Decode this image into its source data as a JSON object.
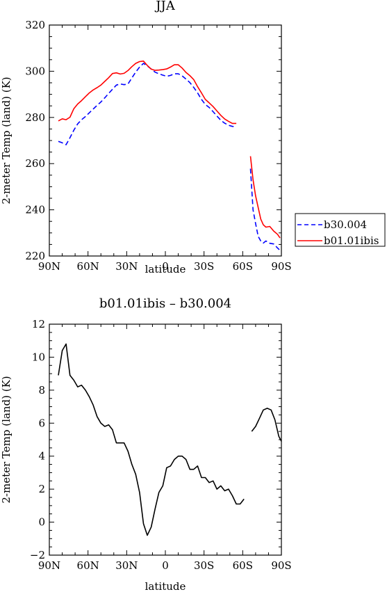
{
  "chart_data": [
    {
      "type": "line",
      "title": "JJA",
      "xlabel": "latitude",
      "ylabel": "2-meter Temp (land) (K)",
      "xlim": [
        90,
        -90
      ],
      "ylim": [
        220,
        320
      ],
      "x_tick_values": [
        90,
        60,
        30,
        0,
        -30,
        -60,
        -90
      ],
      "x_tick_labels": [
        "90N",
        "60N",
        "30N",
        "0",
        "30S",
        "60S",
        "90S"
      ],
      "y_tick_values": [
        220,
        240,
        260,
        280,
        300,
        320
      ],
      "y_tick_labels": [
        "220",
        "240",
        "260",
        "280",
        "300",
        "320"
      ],
      "grid": false,
      "legend_position": "right",
      "series": [
        {
          "name": "b30.004",
          "color": "#0000ff",
          "style": "dashed",
          "segments": [
            [
              [
                83,
                269.6
              ],
              [
                80,
                269.0
              ],
              [
                77,
                268.2
              ],
              [
                74,
                271.2
              ],
              [
                71,
                274.5
              ],
              [
                68,
                277.2
              ],
              [
                65,
                279.0
              ],
              [
                62,
                280.4
              ],
              [
                59,
                282.0
              ],
              [
                56,
                283.6
              ],
              [
                53,
                285.2
              ],
              [
                50,
                286.7
              ],
              [
                47,
                288.5
              ],
              [
                44,
                290.4
              ],
              [
                41,
                292.2
              ],
              [
                38,
                294.0
              ],
              [
                35,
                294.5
              ],
              [
                32,
                294.2
              ],
              [
                29,
                294.5
              ],
              [
                26,
                297.1
              ],
              [
                23,
                299.6
              ],
              [
                20,
                301.8
              ],
              [
                17,
                303.4
              ],
              [
                14,
                302.3
              ],
              [
                11,
                301.0
              ],
              [
                8,
                299.6
              ],
              [
                5,
                298.9
              ],
              [
                2,
                298.3
              ],
              [
                -1,
                297.8
              ],
              [
                -4,
                298.2
              ],
              [
                -7,
                298.9
              ],
              [
                -10,
                298.9
              ],
              [
                -13,
                298.0
              ],
              [
                -16,
                296.6
              ],
              [
                -19,
                295.1
              ],
              [
                -22,
                293.0
              ],
              [
                -25,
                290.6
              ],
              [
                -28,
                287.8
              ],
              [
                -31,
                285.6
              ],
              [
                -34,
                284.3
              ],
              [
                -37,
                282.5
              ],
              [
                -40,
                280.6
              ],
              [
                -43,
                278.8
              ],
              [
                -46,
                277.5
              ],
              [
                -49,
                276.6
              ],
              [
                -52,
                276.1
              ],
              [
                -55,
                276.0
              ]
            ],
            [
              [
                -66,
                257.8
              ],
              [
                -68,
                240.0
              ],
              [
                -70,
                234.0
              ],
              [
                -72,
                228.5
              ],
              [
                -74,
                226.5
              ],
              [
                -76,
                225.6
              ],
              [
                -78,
                226.5
              ],
              [
                -81,
                225.5
              ],
              [
                -84,
                225.2
              ],
              [
                -87,
                223.5
              ],
              [
                -89,
                222.4
              ]
            ]
          ]
        },
        {
          "name": "b01.01ibis",
          "color": "#ff0000",
          "style": "solid",
          "segments": [
            [
              [
                83,
                278.5
              ],
              [
                80,
                279.4
              ],
              [
                77,
                279.0
              ],
              [
                74,
                280.1
              ],
              [
                71,
                283.8
              ],
              [
                68,
                285.8
              ],
              [
                65,
                287.3
              ],
              [
                62,
                289.0
              ],
              [
                59,
                290.6
              ],
              [
                56,
                291.9
              ],
              [
                53,
                292.9
              ],
              [
                50,
                294.0
              ],
              [
                47,
                295.6
              ],
              [
                44,
                297.2
              ],
              [
                41,
                299.0
              ],
              [
                38,
                299.3
              ],
              [
                35,
                298.8
              ],
              [
                32,
                299.1
              ],
              [
                29,
                300.3
              ],
              [
                26,
                302.0
              ],
              [
                23,
                303.4
              ],
              [
                20,
                304.2
              ],
              [
                17,
                304.4
              ],
              [
                14,
                302.5
              ],
              [
                11,
                300.9
              ],
              [
                8,
                300.4
              ],
              [
                5,
                300.5
              ],
              [
                2,
                300.7
              ],
              [
                -1,
                301.0
              ],
              [
                -4,
                301.8
              ],
              [
                -7,
                302.8
              ],
              [
                -10,
                302.8
              ],
              [
                -13,
                301.4
              ],
              [
                -16,
                299.5
              ],
              [
                -19,
                298.1
              ],
              [
                -22,
                296.4
              ],
              [
                -25,
                293.3
              ],
              [
                -28,
                290.6
              ],
              [
                -31,
                287.8
              ],
              [
                -34,
                286.3
              ],
              [
                -37,
                284.7
              ],
              [
                -40,
                282.8
              ],
              [
                -43,
                280.9
              ],
              [
                -46,
                279.3
              ],
              [
                -49,
                278.3
              ],
              [
                -52,
                277.4
              ],
              [
                -55,
                277.4
              ]
            ],
            [
              [
                -66,
                263.2
              ],
              [
                -68,
                253.0
              ],
              [
                -70,
                246.0
              ],
              [
                -72,
                241.0
              ],
              [
                -74,
                236.0
              ],
              [
                -76,
                233.5
              ],
              [
                -78,
                232.5
              ],
              [
                -81,
                232.8
              ],
              [
                -84,
                230.8
              ],
              [
                -87,
                229.4
              ],
              [
                -89,
                227.8
              ]
            ]
          ]
        }
      ]
    },
    {
      "type": "line",
      "title": "b01.01ibis – b30.004",
      "xlabel": "latitude",
      "ylabel": "2-meter Temp (land) (K)",
      "xlim": [
        90,
        -90
      ],
      "ylim": [
        -2,
        12
      ],
      "x_tick_values": [
        90,
        60,
        30,
        0,
        -30,
        -60,
        -90
      ],
      "x_tick_labels": [
        "90N",
        "60N",
        "30N",
        "0",
        "30S",
        "60S",
        "90S"
      ],
      "y_tick_values": [
        -2,
        0,
        2,
        4,
        6,
        8,
        10,
        12
      ],
      "y_tick_labels": [
        "−2",
        "0",
        "2",
        "4",
        "6",
        "8",
        "10",
        "12"
      ],
      "grid": false,
      "series": [
        {
          "color": "#000000",
          "style": "solid",
          "segments": [
            [
              [
                83,
                8.9
              ],
              [
                80,
                10.4
              ],
              [
                77,
                10.8
              ],
              [
                74,
                8.9
              ],
              [
                71,
                8.6
              ],
              [
                68,
                8.2
              ],
              [
                65,
                8.3
              ],
              [
                62,
                8.0
              ],
              [
                59,
                7.6
              ],
              [
                56,
                7.1
              ],
              [
                53,
                6.4
              ],
              [
                50,
                6.0
              ],
              [
                47,
                5.8
              ],
              [
                44,
                5.9
              ],
              [
                41,
                5.6
              ],
              [
                38,
                4.8
              ],
              [
                35,
                4.8
              ],
              [
                32,
                4.8
              ],
              [
                29,
                4.3
              ],
              [
                26,
                3.5
              ],
              [
                23,
                2.9
              ],
              [
                20,
                1.8
              ],
              [
                17,
                -0.1
              ],
              [
                14,
                -0.8
              ],
              [
                11,
                -0.3
              ],
              [
                8,
                0.8
              ],
              [
                5,
                1.8
              ],
              [
                2,
                2.2
              ],
              [
                -1,
                3.3
              ],
              [
                -4,
                3.4
              ],
              [
                -7,
                3.8
              ],
              [
                -10,
                4.0
              ],
              [
                -13,
                4.0
              ],
              [
                -16,
                3.8
              ],
              [
                -19,
                3.2
              ],
              [
                -22,
                3.2
              ],
              [
                -25,
                3.4
              ],
              [
                -28,
                2.7
              ],
              [
                -31,
                2.7
              ],
              [
                -34,
                2.4
              ],
              [
                -37,
                2.5
              ],
              [
                -40,
                2.0
              ],
              [
                -43,
                2.2
              ],
              [
                -46,
                1.9
              ],
              [
                -49,
                2.0
              ],
              [
                -52,
                1.6
              ],
              [
                -55,
                1.1
              ],
              [
                -58,
                1.1
              ],
              [
                -61,
                1.4
              ]
            ],
            [
              [
                -67,
                5.5
              ],
              [
                -70,
                5.8
              ],
              [
                -73,
                6.3
              ],
              [
                -76,
                6.8
              ],
              [
                -79,
                6.9
              ],
              [
                -82,
                6.8
              ],
              [
                -85,
                6.2
              ],
              [
                -88,
                5.2
              ],
              [
                -90,
                4.9
              ]
            ]
          ]
        }
      ]
    }
  ]
}
